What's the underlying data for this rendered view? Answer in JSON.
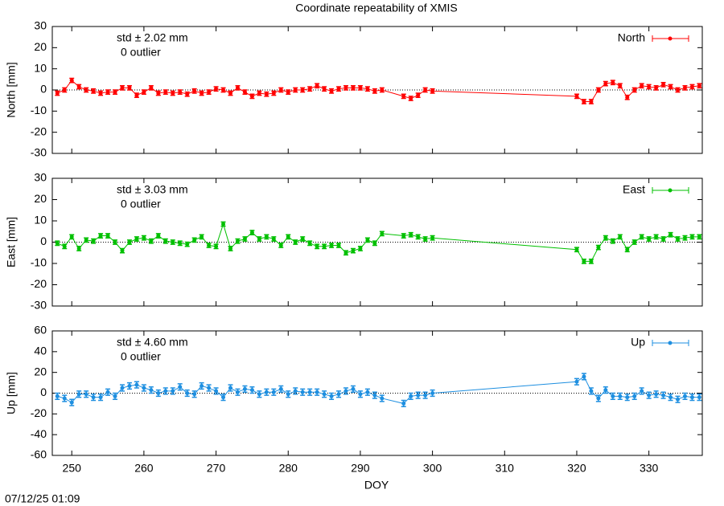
{
  "chart_data": {
    "type": "line",
    "title": "Coordinate repeatability of XMIS",
    "x_label": "DOY",
    "timestamp": "07/12/25 01:09",
    "xlim": [
      247.3,
      337.4
    ],
    "xticks": [
      250,
      260,
      270,
      280,
      290,
      300,
      310,
      320,
      330
    ],
    "x": [
      248,
      249,
      250,
      251,
      252,
      253,
      254,
      255,
      256,
      257,
      258,
      259,
      260,
      261,
      262,
      263,
      264,
      265,
      266,
      267,
      268,
      269,
      270,
      271,
      272,
      273,
      274,
      275,
      276,
      277,
      278,
      279,
      280,
      281,
      282,
      283,
      284,
      285,
      286,
      287,
      288,
      289,
      290,
      291,
      292,
      293,
      296,
      297,
      298,
      299,
      300,
      320,
      321,
      322,
      323,
      324,
      325,
      326,
      327,
      328,
      329,
      330,
      331,
      332,
      333,
      334,
      335,
      336,
      337
    ],
    "series": [
      {
        "name": "North",
        "color": "#ff0000",
        "y_label": "North [mm]",
        "std_label": "std ± 2.02 mm",
        "outlier_label": "0 outlier",
        "error": 1,
        "ylim": [
          -30,
          30
        ],
        "yticks": [
          -30,
          -20,
          -10,
          0,
          10,
          20,
          30
        ],
        "values": [
          -1.5,
          0,
          4.5,
          1.5,
          0,
          -0.5,
          -1.5,
          -1,
          -1,
          1,
          1,
          -2.5,
          -1,
          1,
          -1.5,
          -1,
          -1.5,
          -1,
          -2,
          -0.5,
          -1.5,
          -1,
          0.5,
          0,
          -1.5,
          1,
          -1,
          -3,
          -1.5,
          -2,
          -1.5,
          0,
          -1,
          0,
          0,
          0.5,
          2,
          0.5,
          -0.5,
          0.5,
          1,
          1,
          1,
          0.5,
          -0.5,
          0,
          -3,
          -4,
          -2.5,
          0,
          -0.5,
          -3,
          -5.5,
          -5.5,
          0,
          3,
          3.5,
          2,
          -3.5,
          0,
          2,
          1.5,
          1,
          2.5,
          1.5,
          0,
          1,
          1.5,
          2
        ]
      },
      {
        "name": "East",
        "color": "#00c000",
        "y_label": "East [mm]",
        "std_label": "std ± 3.03 mm",
        "outlier_label": "0 outlier",
        "error": 1,
        "ylim": [
          -30,
          30
        ],
        "yticks": [
          -30,
          -20,
          -10,
          0,
          10,
          20,
          30
        ],
        "values": [
          -0.5,
          -2,
          2.5,
          -3,
          1,
          0.5,
          3,
          3,
          0,
          -4,
          0,
          1.5,
          2,
          0.5,
          3,
          0.5,
          0,
          -0.5,
          -1,
          1,
          2.5,
          -1.5,
          -2,
          8.5,
          -3,
          0.5,
          1.5,
          4.5,
          1.5,
          2.5,
          1.5,
          -1.5,
          2.5,
          0,
          1.5,
          -0.5,
          -2,
          -2,
          -1.5,
          -1.5,
          -5,
          -4,
          -3,
          1,
          -0.5,
          4,
          3,
          3.5,
          2.5,
          1.5,
          2,
          -3.5,
          -9,
          -9,
          -2.5,
          2,
          0.5,
          2.5,
          -3.5,
          0,
          2.5,
          1.5,
          2.5,
          1.5,
          3.5,
          1.5,
          2,
          2.5,
          2.5
        ]
      },
      {
        "name": "Up",
        "color": "#1e8fe0",
        "y_label": "Up [mm]",
        "std_label": "std ± 4.60 mm",
        "outlier_label": "0 outlier",
        "error": 3,
        "ylim": [
          -60,
          60
        ],
        "yticks": [
          -60,
          -40,
          -20,
          0,
          20,
          40,
          60
        ],
        "values": [
          -3,
          -5,
          -9,
          -1,
          -1,
          -4,
          -4,
          1,
          -3,
          5,
          7,
          8,
          5,
          3,
          0,
          2,
          2,
          6,
          0,
          -1,
          7,
          5,
          2,
          -4,
          5,
          1,
          4,
          3,
          -1,
          1,
          1,
          4,
          -1,
          2,
          1,
          1,
          1,
          -1,
          -3,
          -1,
          2,
          4,
          -1,
          1,
          -2,
          -5,
          -10,
          -3,
          -2,
          -2,
          0,
          11,
          16,
          2,
          -5,
          3,
          -3,
          -3,
          -4,
          -3,
          2,
          -2,
          -1,
          -2,
          -4,
          -6,
          -3,
          -4,
          -4
        ]
      }
    ]
  }
}
